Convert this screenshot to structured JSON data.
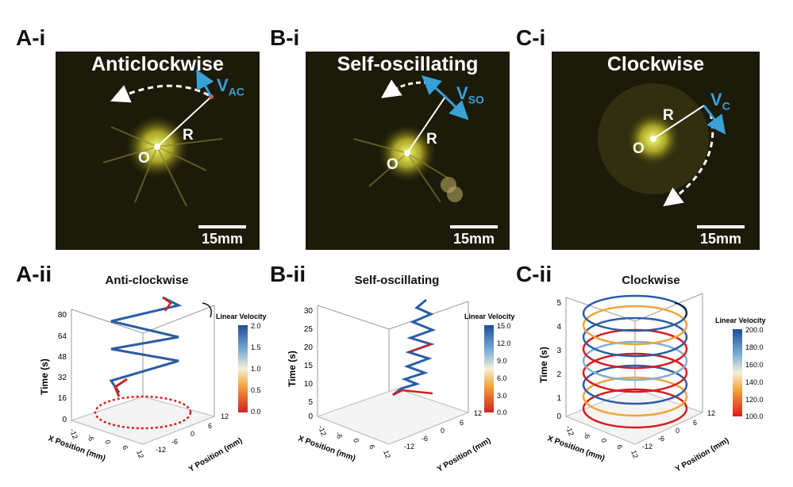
{
  "panels_top": [
    {
      "label": "A-i",
      "title": "Anticlockwise",
      "o": "O",
      "r": "R",
      "v": "V",
      "vsub": "AC",
      "scale": "15mm"
    },
    {
      "label": "B-i",
      "title": "Self-oscillating",
      "o": "O",
      "r": "R",
      "v": "V",
      "vsub": "SO",
      "scale": "15mm"
    },
    {
      "label": "C-i",
      "title": "Clockwise",
      "o": "O",
      "r": "R",
      "v": "V",
      "vsub": "C",
      "scale": "15mm"
    }
  ],
  "panels_bottom": [
    {
      "label": "A-ii",
      "title": "Anti-clockwise",
      "colorbar_title": "Linear Velocity",
      "cb_ticks": [
        "2.0",
        "1.5",
        "1.0",
        "0.5",
        "0.0"
      ],
      "time_ticks": [
        "80",
        "64",
        "48",
        "32",
        "16",
        "0"
      ],
      "x_ticks": [
        "-12",
        "-6",
        "0",
        "6",
        "12"
      ],
      "y_ticks": [
        "12",
        "6",
        "0",
        "-6",
        "-12"
      ],
      "xlabel": "X Position (mm)",
      "ylabel": "Y Position (mm)",
      "zlabel": "Time (s)"
    },
    {
      "label": "B-ii",
      "title": "Self-oscillating",
      "colorbar_title": "Linear Velocity",
      "cb_ticks": [
        "15.0",
        "12.0",
        "9.0",
        "6.0",
        "3.0",
        "0.0"
      ],
      "time_ticks": [
        "30",
        "25",
        "20",
        "15",
        "10",
        "5",
        "0"
      ],
      "x_ticks": [
        "-12",
        "-6",
        "0",
        "6",
        "12"
      ],
      "y_ticks": [
        "12",
        "6",
        "0",
        "-6",
        "-12"
      ],
      "xlabel": "X Position (mm)",
      "ylabel": "Y Position (mm)",
      "zlabel": "Time (s)"
    },
    {
      "label": "C-ii",
      "title": "Clockwise",
      "colorbar_title": "Linear Velocity",
      "cb_ticks": [
        "200.0",
        "180.0",
        "160.0",
        "140.0",
        "120.0",
        "100.0"
      ],
      "time_ticks": [
        "5",
        "4",
        "3",
        "2",
        "1",
        "0"
      ],
      "x_ticks": [
        "-12",
        "-6",
        "0",
        "6",
        "12"
      ],
      "y_ticks": [
        "12",
        "6",
        "0",
        "-6",
        "-12"
      ],
      "xlabel": "X Position (mm)",
      "ylabel": "Y Position (mm)",
      "zlabel": "Time (s)"
    }
  ],
  "colors": {
    "velocity_arrow": "#3aa0d8",
    "photo_bg": "#1c1a08",
    "cb_high": "#1f4e9c",
    "cb_mid": "#f5f0d8",
    "cb_low": "#d41f1f"
  }
}
